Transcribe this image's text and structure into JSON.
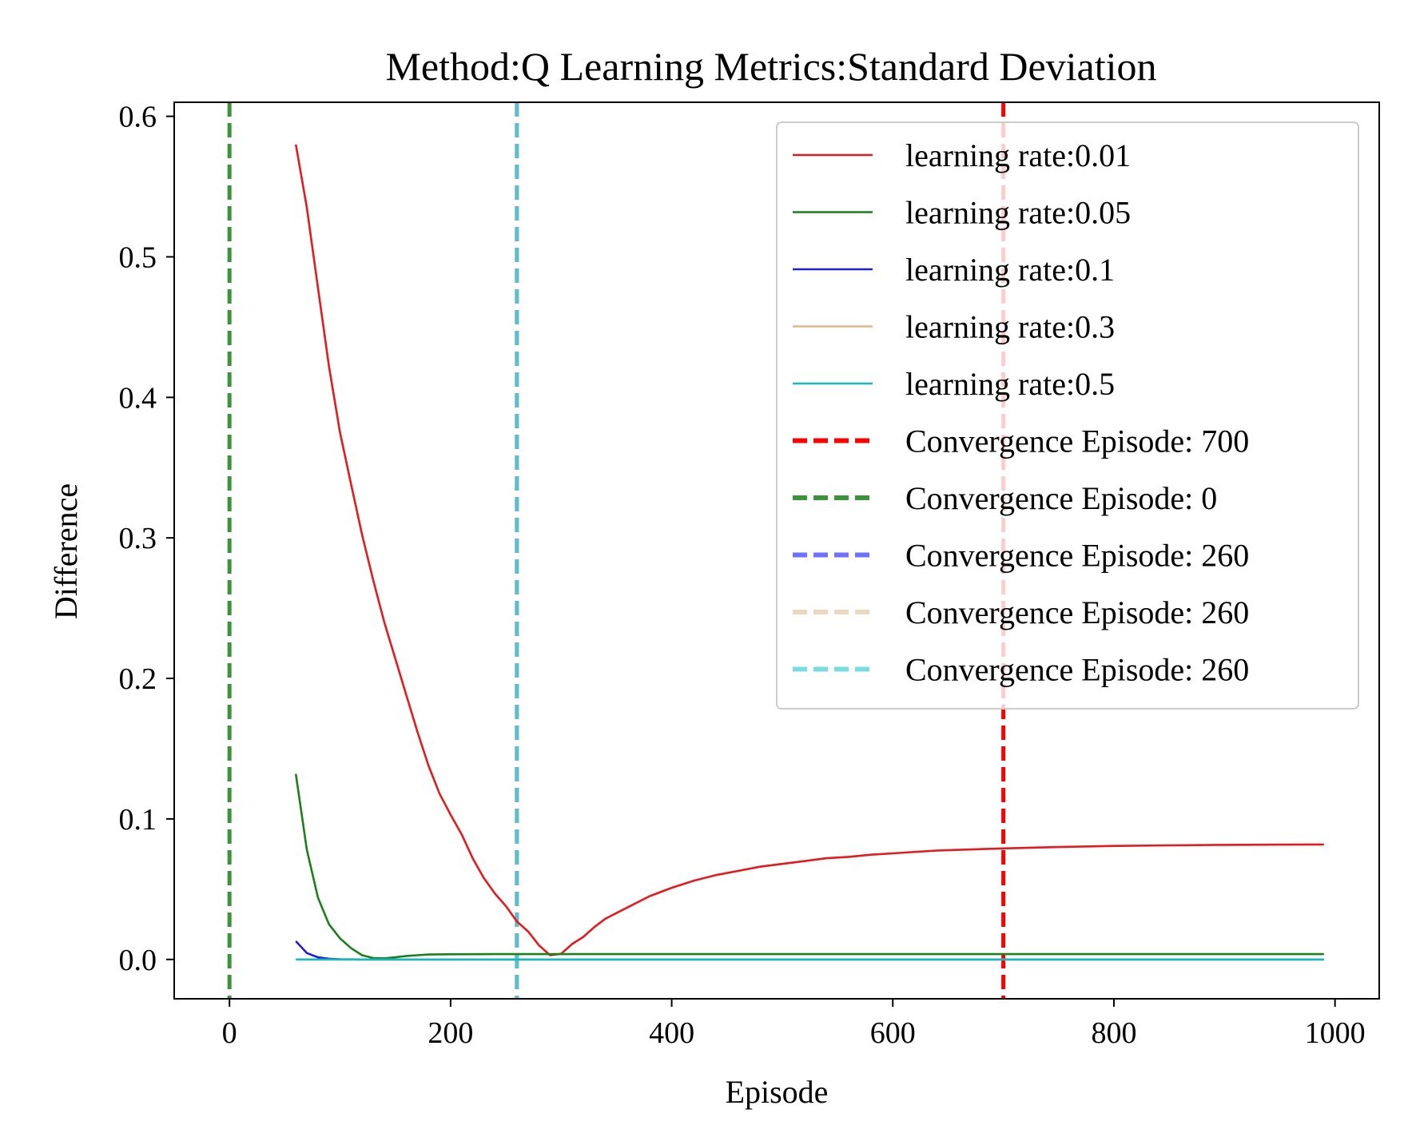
{
  "chart_data": {
    "type": "line",
    "title": "Method:Q Learning   Metrics:Standard Deviation",
    "xlabel": "Episode",
    "ylabel": "Difference",
    "xlim": [
      -50,
      1040
    ],
    "ylim": [
      -0.028,
      0.61
    ],
    "xticks": [
      {
        "value": 0,
        "label": "0"
      },
      {
        "value": 200,
        "label": "200"
      },
      {
        "value": 400,
        "label": "400"
      },
      {
        "value": 600,
        "label": "600"
      },
      {
        "value": 800,
        "label": "800"
      },
      {
        "value": 1000,
        "label": "1000"
      }
    ],
    "yticks": [
      {
        "value": 0.0,
        "label": "0.0"
      },
      {
        "value": 0.1,
        "label": "0.1"
      },
      {
        "value": 0.2,
        "label": "0.2"
      },
      {
        "value": 0.3,
        "label": "0.3"
      },
      {
        "value": 0.4,
        "label": "0.4"
      },
      {
        "value": 0.5,
        "label": "0.5"
      },
      {
        "value": 0.6,
        "label": "0.6"
      }
    ],
    "grid": false,
    "legend_position": "top-right",
    "series": [
      {
        "name": "learning rate:0.01",
        "color": "#e41a1c",
        "x": [
          60,
          70,
          80,
          90,
          100,
          110,
          120,
          130,
          140,
          150,
          160,
          170,
          180,
          190,
          200,
          210,
          220,
          230,
          240,
          250,
          260,
          270,
          280,
          290,
          300,
          310,
          320,
          330,
          340,
          360,
          380,
          400,
          420,
          440,
          460,
          480,
          500,
          520,
          540,
          560,
          580,
          600,
          620,
          640,
          660,
          680,
          700,
          750,
          800,
          850,
          900,
          950,
          990
        ],
        "y": [
          0.58,
          0.535,
          0.478,
          0.422,
          0.375,
          0.338,
          0.302,
          0.27,
          0.24,
          0.214,
          0.188,
          0.162,
          0.138,
          0.118,
          0.103,
          0.089,
          0.072,
          0.058,
          0.047,
          0.038,
          0.027,
          0.02,
          0.01,
          0.003,
          0.004,
          0.011,
          0.016,
          0.023,
          0.029,
          0.037,
          0.045,
          0.051,
          0.056,
          0.06,
          0.063,
          0.066,
          0.068,
          0.07,
          0.072,
          0.073,
          0.0745,
          0.0755,
          0.0765,
          0.0775,
          0.078,
          0.0785,
          0.079,
          0.08,
          0.0808,
          0.0812,
          0.0815,
          0.0817,
          0.0818
        ]
      },
      {
        "name": "learning rate:0.05",
        "color": "#1a801a",
        "x": [
          60,
          70,
          80,
          90,
          100,
          110,
          120,
          130,
          140,
          150,
          160,
          170,
          180,
          200,
          240,
          300,
          400,
          600,
          800,
          990
        ],
        "y": [
          0.132,
          0.078,
          0.044,
          0.025,
          0.015,
          0.008,
          0.003,
          0.001,
          0.0008,
          0.0015,
          0.0025,
          0.003,
          0.0035,
          0.0037,
          0.0038,
          0.0038,
          0.0038,
          0.0038,
          0.0038,
          0.0038
        ]
      },
      {
        "name": "learning rate:0.1",
        "color": "#1f1fd6",
        "x": [
          60,
          70,
          80,
          90,
          100,
          120,
          150,
          200,
          400,
          600,
          800,
          990
        ],
        "y": [
          0.013,
          0.0045,
          0.0015,
          0.0005,
          0.0001,
          0.0,
          0.0,
          0.0,
          0.0,
          0.0,
          0.0,
          0.0
        ]
      },
      {
        "name": "learning rate:0.3",
        "color": "#deb887",
        "x": [
          60,
          200,
          400,
          600,
          800,
          990
        ],
        "y": [
          0.0,
          0.0,
          0.0,
          0.0,
          0.0,
          0.0
        ]
      },
      {
        "name": "learning rate:0.5",
        "color": "#17b8c0",
        "x": [
          60,
          200,
          400,
          600,
          800,
          990
        ],
        "y": [
          0.0,
          0.0,
          0.0,
          0.0,
          0.0,
          0.0
        ]
      }
    ],
    "vlines": [
      {
        "name": "Convergence Episode: 700",
        "x": 700,
        "color": "#ff0000",
        "opacity": 1.0
      },
      {
        "name": "Convergence Episode: 0",
        "x": 0,
        "color": "#1a801a",
        "opacity": 0.85
      },
      {
        "name": "Convergence Episode: 260",
        "x": 260,
        "color": "#3333ff",
        "opacity": 0.7
      },
      {
        "name": "Convergence Episode: 260",
        "x": 260,
        "color": "#deb887",
        "opacity": 0.55
      },
      {
        "name": "Convergence Episode: 260",
        "x": 260,
        "color": "#3fcfd4",
        "opacity": 0.7
      }
    ]
  }
}
